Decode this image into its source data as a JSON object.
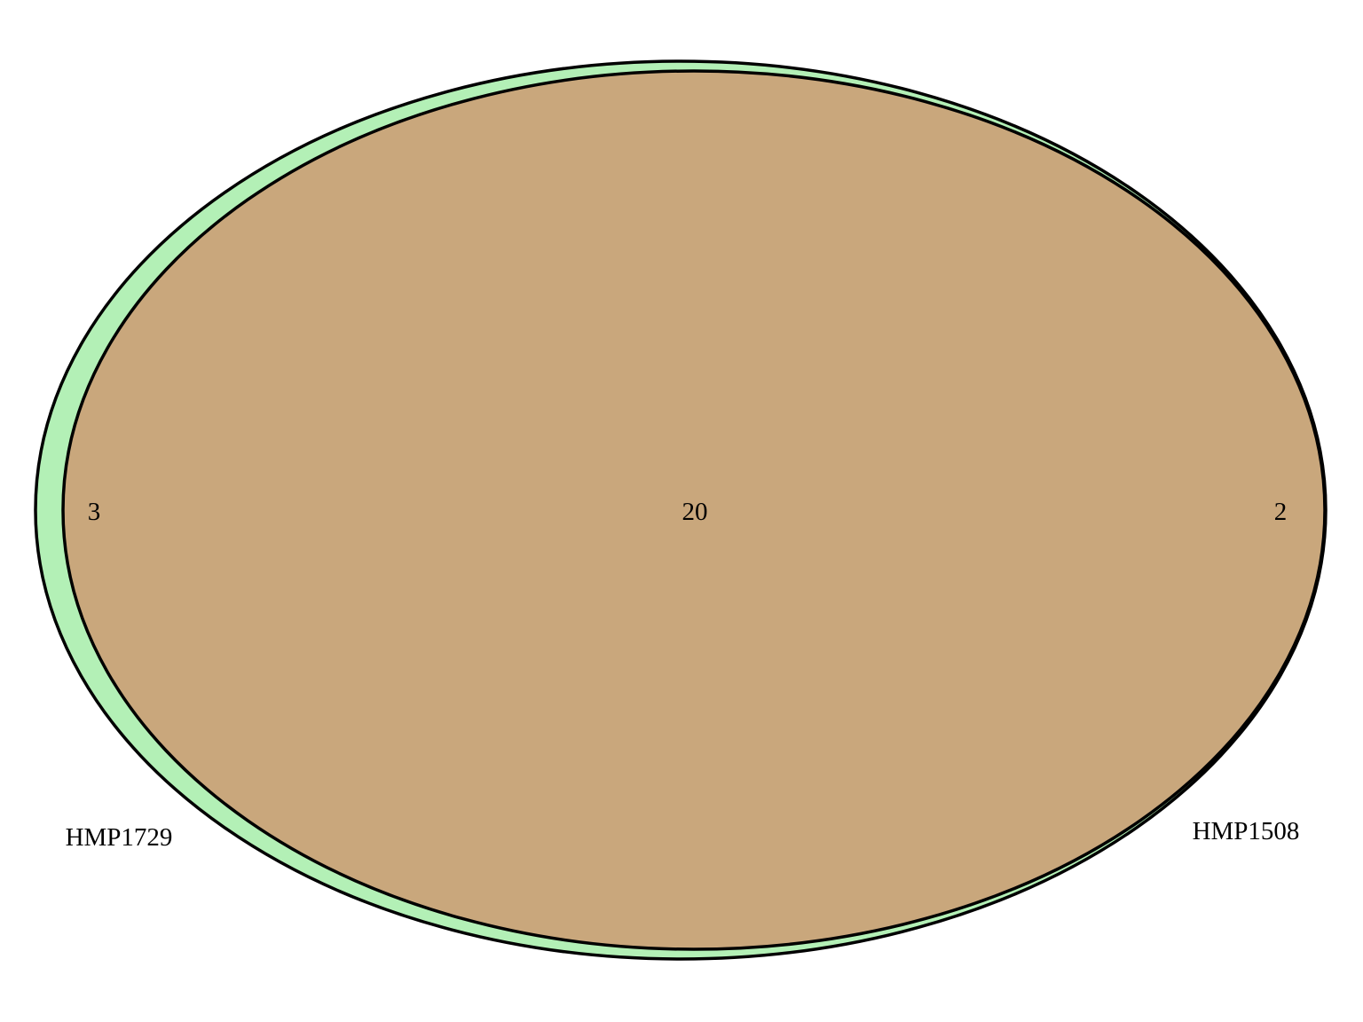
{
  "venn": {
    "sets": [
      {
        "label": "HMP1729",
        "color": "#b3f0b6"
      },
      {
        "label": "HMP1508",
        "color": "#ffb3b3"
      }
    ],
    "overlap_color": "#c9a77c",
    "outline_color": "#000000",
    "counts": {
      "left_only": "3",
      "both": "20",
      "right_only": "2"
    }
  }
}
